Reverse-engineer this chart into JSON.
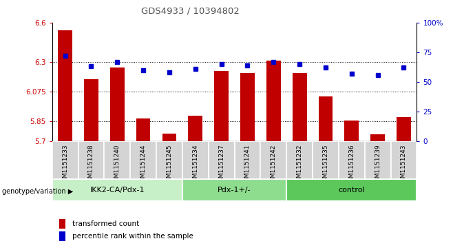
{
  "title": "GDS4933 / 10394802",
  "samples": [
    "GSM1151233",
    "GSM1151238",
    "GSM1151240",
    "GSM1151244",
    "GSM1151245",
    "GSM1151234",
    "GSM1151237",
    "GSM1151241",
    "GSM1151242",
    "GSM1151232",
    "GSM1151235",
    "GSM1151236",
    "GSM1151239",
    "GSM1151243"
  ],
  "groups": [
    {
      "label": "IKK2-CA/Pdx-1",
      "indices": [
        0,
        4
      ],
      "color": "#c8efc8"
    },
    {
      "label": "Pdx-1+/-",
      "indices": [
        5,
        8
      ],
      "color": "#8ee08e"
    },
    {
      "label": "control",
      "indices": [
        9,
        13
      ],
      "color": "#5cd05c"
    }
  ],
  "bar_values": [
    6.54,
    6.17,
    6.26,
    5.875,
    5.76,
    5.895,
    6.235,
    6.215,
    6.31,
    6.215,
    6.04,
    5.855,
    5.755,
    5.885
  ],
  "percentile_values": [
    72,
    63,
    67,
    60,
    58,
    61,
    65,
    64,
    67,
    65,
    62,
    57,
    56,
    62
  ],
  "ylim_left": [
    5.7,
    6.6
  ],
  "ylim_right": [
    0,
    100
  ],
  "yticks_left": [
    5.7,
    5.85,
    6.075,
    6.3,
    6.6
  ],
  "ytick_labels_left": [
    "5.7",
    "5.85",
    "6.075",
    "6.3",
    "6.6"
  ],
  "yticks_right": [
    0,
    25,
    50,
    75,
    100
  ],
  "ytick_labels_right": [
    "0",
    "25",
    "50",
    "75",
    "100%"
  ],
  "bar_color": "#c00000",
  "dot_color": "#0000cc",
  "bar_bottom": 5.7,
  "genotype_label": "genotype/variation",
  "legend_bar_label": "transformed count",
  "legend_dot_label": "percentile rank within the sample",
  "sample_bg_color": "#d0d0d0",
  "plot_bg": "#ffffff",
  "title_color": "#505050",
  "grid_dotted_at": [
    5.85,
    6.075,
    6.3
  ],
  "bar_width": 0.55
}
